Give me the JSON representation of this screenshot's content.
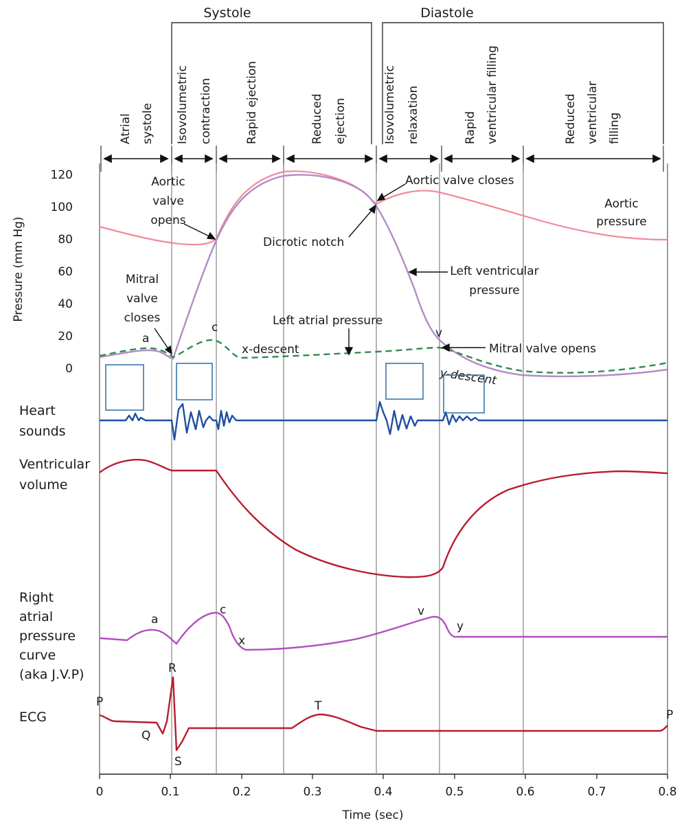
{
  "phases": {
    "systole": "Systole",
    "diastole": "Diastole",
    "columns": [
      {
        "lines": [
          "Atrial",
          "systole"
        ]
      },
      {
        "lines": [
          "Isovolumetric",
          "contraction"
        ]
      },
      {
        "lines": [
          "Rapid ejection"
        ]
      },
      {
        "lines": [
          "Reduced",
          "ejection"
        ]
      },
      {
        "lines": [
          "Isovolumetric",
          "relaxation"
        ]
      },
      {
        "lines": [
          "Rapid",
          "ventricular filling"
        ]
      },
      {
        "lines": [
          "Reduced",
          "ventricular",
          "filling"
        ]
      }
    ]
  },
  "pressure_axis": {
    "label": "Pressure (mm Hg)",
    "ticks": [
      "0",
      "20",
      "40",
      "60",
      "80",
      "100",
      "120"
    ],
    "range": [
      0,
      120
    ]
  },
  "time_axis": {
    "label": "Time (sec)",
    "ticks": [
      "0",
      "0.1",
      "0.2",
      "0.3",
      "0.4",
      "0.5",
      "0.6",
      "0.7",
      "0.8"
    ],
    "range": [
      0,
      0.8
    ],
    "dividers_sec": [
      0.105,
      0.165,
      0.26,
      0.39,
      0.48,
      0.595
    ]
  },
  "annotations": {
    "aortic_valve_opens": [
      "Aortic",
      "valve",
      "opens"
    ],
    "aortic_valve_closes": "Aortic valve closes",
    "aortic_pressure": [
      "Aortic",
      "pressure"
    ],
    "dicrotic_notch": "Dicrotic notch",
    "left_ventricular_pressure": [
      "Left ventricular",
      "pressure"
    ],
    "mitral_valve_closes": [
      "Mitral",
      "valve",
      "closes"
    ],
    "left_atrial_pressure": "Left atrial pressure",
    "x_descent": "x-descent",
    "y_descent": "y-descent",
    "mitral_valve_opens": "Mitral valve opens",
    "la_a": "a",
    "la_c": "c",
    "la_v": "v"
  },
  "rows": {
    "heart_sounds": [
      "Heart",
      "sounds"
    ],
    "ventricular_volume": [
      "Ventricular",
      "volume"
    ],
    "right_atrial": [
      "Right",
      "atrial",
      "pressure",
      "curve",
      "(aka J.V.P)"
    ],
    "ecg": "ECG"
  },
  "jvp_labels": {
    "a": "a",
    "c": "c",
    "x": "x",
    "v": "v",
    "y": "y"
  },
  "ecg_labels": {
    "p1": "P",
    "q": "Q",
    "r": "R",
    "s": "S",
    "t": "T",
    "p2": "P"
  },
  "colors": {
    "aortic": "#f08a9a",
    "ventricular": "#b48ac8",
    "atrial": "#2e8b4e",
    "heart_sounds": "#1f4fa0",
    "volume": "#b81c2e",
    "jvp": "#b24fc0",
    "ecg": "#b81c2e",
    "grid": "#555555",
    "box": "#2a6fa8"
  },
  "chart_data": {
    "type": "line",
    "x_unit": "sec",
    "y_unit": "mm Hg",
    "xlim": [
      0,
      0.8
    ],
    "ylim": [
      0,
      120
    ],
    "series": [
      {
        "name": "Aortic pressure",
        "x": [
          0,
          0.05,
          0.1,
          0.16,
          0.2,
          0.28,
          0.36,
          0.39,
          0.45,
          0.55,
          0.65,
          0.75,
          0.8
        ],
        "y": [
          87,
          80,
          76,
          76,
          103,
          120,
          112,
          100,
          108,
          100,
          90,
          81,
          80
        ]
      },
      {
        "name": "Left ventricular pressure",
        "x": [
          0,
          0.08,
          0.105,
          0.13,
          0.165,
          0.2,
          0.28,
          0.35,
          0.39,
          0.43,
          0.48,
          0.55,
          0.65,
          0.8
        ],
        "y": [
          6,
          10,
          3,
          40,
          78,
          105,
          119,
          112,
          100,
          55,
          10,
          -3,
          -5,
          -1
        ]
      },
      {
        "name": "Left atrial pressure",
        "x": [
          0,
          0.065,
          0.105,
          0.165,
          0.2,
          0.3,
          0.39,
          0.48,
          0.55,
          0.65,
          0.8
        ],
        "y": [
          8,
          13,
          5,
          17,
          6,
          8,
          9,
          11,
          0,
          -3,
          2
        ]
      }
    ]
  }
}
